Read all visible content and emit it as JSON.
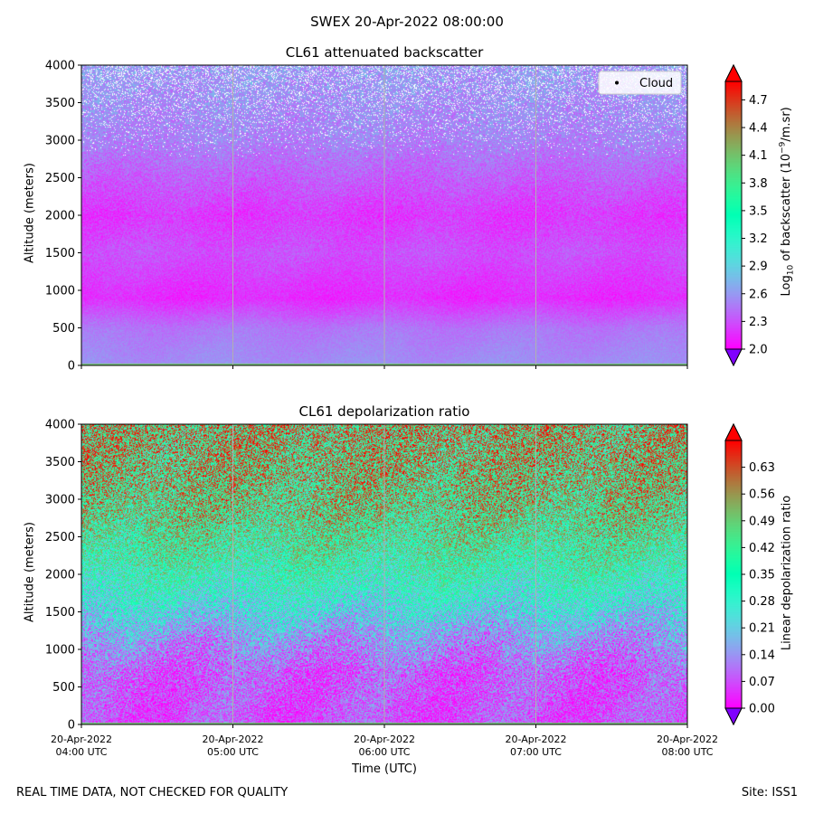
{
  "title": "SWEX 20-Apr-2022 08:00:00",
  "footer": {
    "left": "REAL TIME DATA, NOT CHECKED FOR QUALITY",
    "right": "Site: ISS1"
  },
  "chart_data": [
    {
      "type": "heatmap",
      "title": "CL61 attenuated backscatter",
      "ylabel": "Altitude (meters)",
      "xlabel": "",
      "ylim": [
        0,
        4000
      ],
      "yticks": [
        0,
        500,
        1000,
        1500,
        2000,
        2500,
        3000,
        3500,
        4000
      ],
      "x_range": [
        "2022-04-20 04:00",
        "2022-04-20 08:00"
      ],
      "x_tick_labels": [],
      "grid": "vertical",
      "legend": {
        "position": "top-right",
        "entries": [
          "Cloud"
        ]
      },
      "colorbar": {
        "label_parts": [
          "Log",
          "10",
          " of backscatter (10",
          "−9",
          "/m.sr)"
        ],
        "range": [
          2.0,
          4.9
        ],
        "ticks": [
          "2.0",
          "2.3",
          "2.6",
          "2.9",
          "3.2",
          "3.5",
          "3.8",
          "4.1",
          "4.4",
          "4.7"
        ],
        "colormap": "rainbow",
        "extend": "both"
      },
      "description_profile": [
        {
          "altitude": 0,
          "value": 2.55
        },
        {
          "altitude": 500,
          "value": 2.45
        },
        {
          "altitude": 900,
          "value": 2.15
        },
        {
          "altitude": 1500,
          "value": 2.3
        },
        {
          "altitude": 2000,
          "value": 2.2
        },
        {
          "altitude": 2500,
          "value": 2.35
        },
        {
          "altitude": 3000,
          "value": 2.5
        },
        {
          "altitude": 3500,
          "value": 2.55
        },
        {
          "altitude": 4000,
          "value": 2.6
        }
      ]
    },
    {
      "type": "heatmap",
      "title": "CL61 depolarization ratio",
      "ylabel": "Altitude (meters)",
      "xlabel": "Time (UTC)",
      "ylim": [
        0,
        4000
      ],
      "yticks": [
        0,
        500,
        1000,
        1500,
        2000,
        2500,
        3000,
        3500,
        4000
      ],
      "x_range": [
        "2022-04-20 04:00",
        "2022-04-20 08:00"
      ],
      "x_tick_labels": [
        [
          "20-Apr-2022",
          "04:00 UTC"
        ],
        [
          "20-Apr-2022",
          "05:00 UTC"
        ],
        [
          "20-Apr-2022",
          "06:00 UTC"
        ],
        [
          "20-Apr-2022",
          "07:00 UTC"
        ],
        [
          "20-Apr-2022",
          "08:00 UTC"
        ]
      ],
      "grid": "vertical",
      "colorbar": {
        "label_parts": [
          "Linear depolarization ratio"
        ],
        "range": [
          0.0,
          0.7
        ],
        "ticks": [
          "0.00",
          "0.07",
          "0.14",
          "0.21",
          "0.28",
          "0.35",
          "0.42",
          "0.49",
          "0.56",
          "0.63"
        ],
        "colormap": "rainbow",
        "extend": "both"
      },
      "description_profile": [
        {
          "altitude": 0,
          "value": 0.07
        },
        {
          "altitude": 700,
          "value": 0.08
        },
        {
          "altitude": 1200,
          "value": 0.16
        },
        {
          "altitude": 1700,
          "value": 0.28
        },
        {
          "altitude": 2200,
          "value": 0.38
        },
        {
          "altitude": 2800,
          "value": 0.46
        },
        {
          "altitude": 3400,
          "value": 0.5
        },
        {
          "altitude": 4000,
          "value": 0.52
        }
      ]
    }
  ]
}
